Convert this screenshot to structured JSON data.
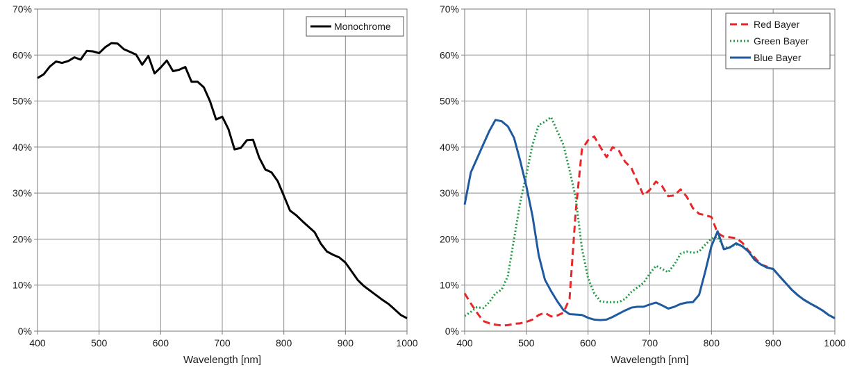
{
  "chart_data": [
    {
      "type": "line",
      "xlabel": "Wavelength [nm]",
      "ylabel": "",
      "xlim": [
        400,
        1000
      ],
      "ylim": [
        0,
        70
      ],
      "x_ticks": [
        "400",
        "500",
        "600",
        "700",
        "800",
        "900",
        "1000"
      ],
      "y_ticks": [
        "0%",
        "10%",
        "20%",
        "30%",
        "40%",
        "50%",
        "60%",
        "70%"
      ],
      "grid": true,
      "legend_position": "top-right",
      "series": [
        {
          "name": "Monochrome",
          "color": "#000000",
          "style": "solid",
          "x": [
            400,
            410,
            420,
            430,
            440,
            450,
            460,
            470,
            480,
            490,
            500,
            510,
            520,
            530,
            540,
            550,
            560,
            570,
            580,
            590,
            600,
            610,
            620,
            630,
            640,
            650,
            660,
            670,
            680,
            690,
            700,
            710,
            720,
            730,
            740,
            750,
            760,
            770,
            780,
            790,
            800,
            810,
            820,
            830,
            840,
            850,
            860,
            870,
            880,
            890,
            900,
            910,
            920,
            930,
            940,
            950,
            960,
            970,
            980,
            990,
            1000
          ],
          "y": [
            55,
            55.8,
            57.5,
            58.6,
            58.3,
            58.7,
            59.5,
            59.0,
            60.9,
            60.8,
            60.4,
            61.7,
            62.6,
            62.5,
            61.3,
            60.7,
            60.1,
            57.9,
            59.8,
            56.0,
            57.3,
            58.8,
            56.5,
            56.8,
            57.4,
            54.2,
            54.2,
            53.0,
            50.0,
            46.0,
            46.6,
            43.9,
            39.5,
            39.8,
            41.5,
            41.6,
            37.7,
            35.1,
            34.5,
            32.6,
            29.4,
            26.2,
            25.2,
            23.9,
            22.7,
            21.5,
            19.0,
            17.3,
            16.6,
            16.0,
            14.9,
            13.0,
            11.1,
            9.8,
            8.8,
            7.8,
            6.8,
            5.9,
            4.7,
            3.5,
            2.8
          ]
        }
      ]
    },
    {
      "type": "line",
      "xlabel": "Wavelength [nm]",
      "ylabel": "",
      "xlim": [
        400,
        1000
      ],
      "ylim": [
        0,
        70
      ],
      "x_ticks": [
        "400",
        "500",
        "600",
        "700",
        "800",
        "900",
        "1000"
      ],
      "y_ticks": [
        "0%",
        "10%",
        "20%",
        "30%",
        "40%",
        "50%",
        "60%",
        "70%"
      ],
      "grid": true,
      "legend_position": "top-right",
      "series": [
        {
          "name": "Red Bayer",
          "color": "#e8262a",
          "style": "dashed",
          "x": [
            400,
            410,
            420,
            430,
            440,
            450,
            460,
            470,
            480,
            490,
            500,
            510,
            520,
            530,
            540,
            550,
            560,
            570,
            580,
            590,
            600,
            610,
            620,
            630,
            640,
            650,
            660,
            670,
            680,
            690,
            700,
            710,
            720,
            730,
            740,
            750,
            760,
            770,
            780,
            790,
            800,
            810,
            820,
            830,
            840,
            850,
            860,
            870,
            880,
            890,
            900,
            910,
            920,
            930,
            940,
            950,
            960,
            970,
            980,
            990,
            1000
          ],
          "y": [
            8.2,
            6.0,
            4.0,
            2.2,
            1.7,
            1.4,
            1.2,
            1.3,
            1.6,
            1.7,
            2.0,
            2.5,
            3.5,
            4.0,
            3.2,
            3.4,
            4.0,
            7.0,
            26.0,
            39.5,
            41.5,
            42.3,
            40.0,
            37.8,
            40.0,
            39.2,
            36.8,
            35.5,
            32.5,
            29.5,
            30.7,
            32.5,
            31.5,
            29.3,
            29.5,
            30.8,
            29.2,
            26.7,
            25.5,
            25.2,
            24.8,
            21.3,
            20.5,
            20.4,
            20.2,
            19.2,
            17.5,
            16.0,
            14.5,
            14.0,
            13.5,
            12.0,
            10.5,
            9.0,
            7.8,
            6.8,
            6.0,
            5.3,
            4.5,
            3.5,
            2.8
          ]
        },
        {
          "name": "Green Bayer",
          "color": "#1f9a45",
          "style": "dotted",
          "x": [
            400,
            410,
            420,
            430,
            440,
            450,
            460,
            470,
            480,
            490,
            500,
            510,
            520,
            530,
            540,
            550,
            560,
            570,
            580,
            590,
            600,
            610,
            620,
            630,
            640,
            650,
            660,
            670,
            680,
            690,
            700,
            710,
            720,
            730,
            740,
            750,
            760,
            770,
            780,
            790,
            800,
            810,
            820,
            830,
            840,
            850,
            860,
            870,
            880,
            890,
            900,
            910,
            920,
            930,
            940,
            950,
            960,
            970,
            980,
            990,
            1000
          ],
          "y": [
            3.3,
            4.2,
            5.2,
            5.0,
            6.3,
            8.2,
            9.0,
            12.0,
            20.0,
            28.0,
            34.0,
            40.5,
            44.8,
            45.5,
            46.5,
            43.5,
            40.5,
            35.0,
            29.0,
            18.0,
            11.5,
            8.2,
            6.5,
            6.3,
            6.3,
            6.3,
            7.0,
            8.5,
            9.5,
            10.5,
            12.5,
            14.2,
            13.5,
            12.8,
            14.5,
            16.8,
            17.3,
            17.0,
            17.3,
            18.8,
            20.1,
            20.5,
            18.1,
            18.3,
            18.8,
            18.6,
            17.3,
            15.5,
            14.5,
            13.8,
            13.5,
            12.0,
            10.5,
            9.0,
            7.8,
            6.8,
            6.0,
            5.3,
            4.5,
            3.5,
            2.8
          ]
        },
        {
          "name": "Blue Bayer",
          "color": "#1f5aa0",
          "style": "solid",
          "x": [
            400,
            410,
            420,
            430,
            440,
            450,
            460,
            470,
            480,
            490,
            500,
            510,
            520,
            530,
            540,
            550,
            560,
            570,
            580,
            590,
            600,
            610,
            620,
            630,
            640,
            650,
            660,
            670,
            680,
            690,
            700,
            710,
            720,
            730,
            740,
            750,
            760,
            770,
            780,
            790,
            800,
            810,
            820,
            830,
            840,
            850,
            860,
            870,
            880,
            890,
            900,
            910,
            920,
            930,
            940,
            950,
            960,
            970,
            980,
            990,
            1000
          ],
          "y": [
            27.5,
            34.5,
            37.5,
            40.5,
            43.5,
            45.9,
            45.6,
            44.5,
            42.0,
            37.0,
            31.5,
            25.0,
            16.5,
            11.2,
            8.7,
            6.5,
            4.6,
            3.7,
            3.6,
            3.5,
            2.9,
            2.5,
            2.4,
            2.5,
            3.1,
            3.8,
            4.5,
            5.1,
            5.3,
            5.3,
            5.8,
            6.2,
            5.6,
            4.9,
            5.3,
            5.9,
            6.2,
            6.3,
            7.9,
            13.0,
            18.5,
            21.7,
            17.8,
            18.2,
            19.1,
            18.4,
            17.3,
            15.5,
            14.5,
            13.8,
            13.5,
            12.0,
            10.5,
            9.0,
            7.8,
            6.8,
            6.0,
            5.3,
            4.5,
            3.5,
            2.8
          ]
        }
      ]
    }
  ]
}
